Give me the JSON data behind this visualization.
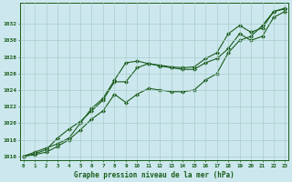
{
  "title": "Graphe pression niveau de la mer (hPa)",
  "background_color": "#cce8ee",
  "grid_color": "#aacccc",
  "line_color": "#1a5c1a",
  "ylim": [
    1015.5,
    1034.5
  ],
  "y_ticks": [
    1016,
    1018,
    1020,
    1022,
    1024,
    1026,
    1028,
    1030,
    1032
  ],
  "x_ticks": [
    0,
    1,
    2,
    3,
    4,
    5,
    6,
    7,
    8,
    9,
    10,
    11,
    12,
    13,
    14,
    15,
    16,
    17,
    18,
    19,
    20,
    21,
    22,
    23
  ],
  "series1_upper": [
    1016.0,
    1016.5,
    1017.0,
    1017.5,
    1018.2,
    1020.0,
    1021.8,
    1023.0,
    1025.2,
    1027.3,
    1027.5,
    1027.2,
    1027.0,
    1026.8,
    1026.7,
    1026.8,
    1027.8,
    1028.5,
    1030.8,
    1031.8,
    1031.0,
    1031.5,
    1033.5,
    1033.8
  ],
  "series2_mid": [
    1016.0,
    1016.3,
    1016.8,
    1018.2,
    1019.3,
    1020.2,
    1021.5,
    1022.8,
    1025.0,
    1025.0,
    1026.7,
    1027.2,
    1026.9,
    1026.7,
    1026.5,
    1026.5,
    1027.3,
    1027.8,
    1029.0,
    1030.8,
    1030.0,
    1030.5,
    1032.8,
    1033.5
  ],
  "series3_lower": [
    1016.0,
    1016.2,
    1016.5,
    1017.2,
    1018.0,
    1019.2,
    1020.5,
    1021.5,
    1023.5,
    1022.5,
    1023.5,
    1024.2,
    1024.0,
    1023.8,
    1023.8,
    1024.0,
    1025.2,
    1026.0,
    1028.5,
    1030.0,
    1030.5,
    1031.8,
    1033.5,
    1033.9
  ]
}
